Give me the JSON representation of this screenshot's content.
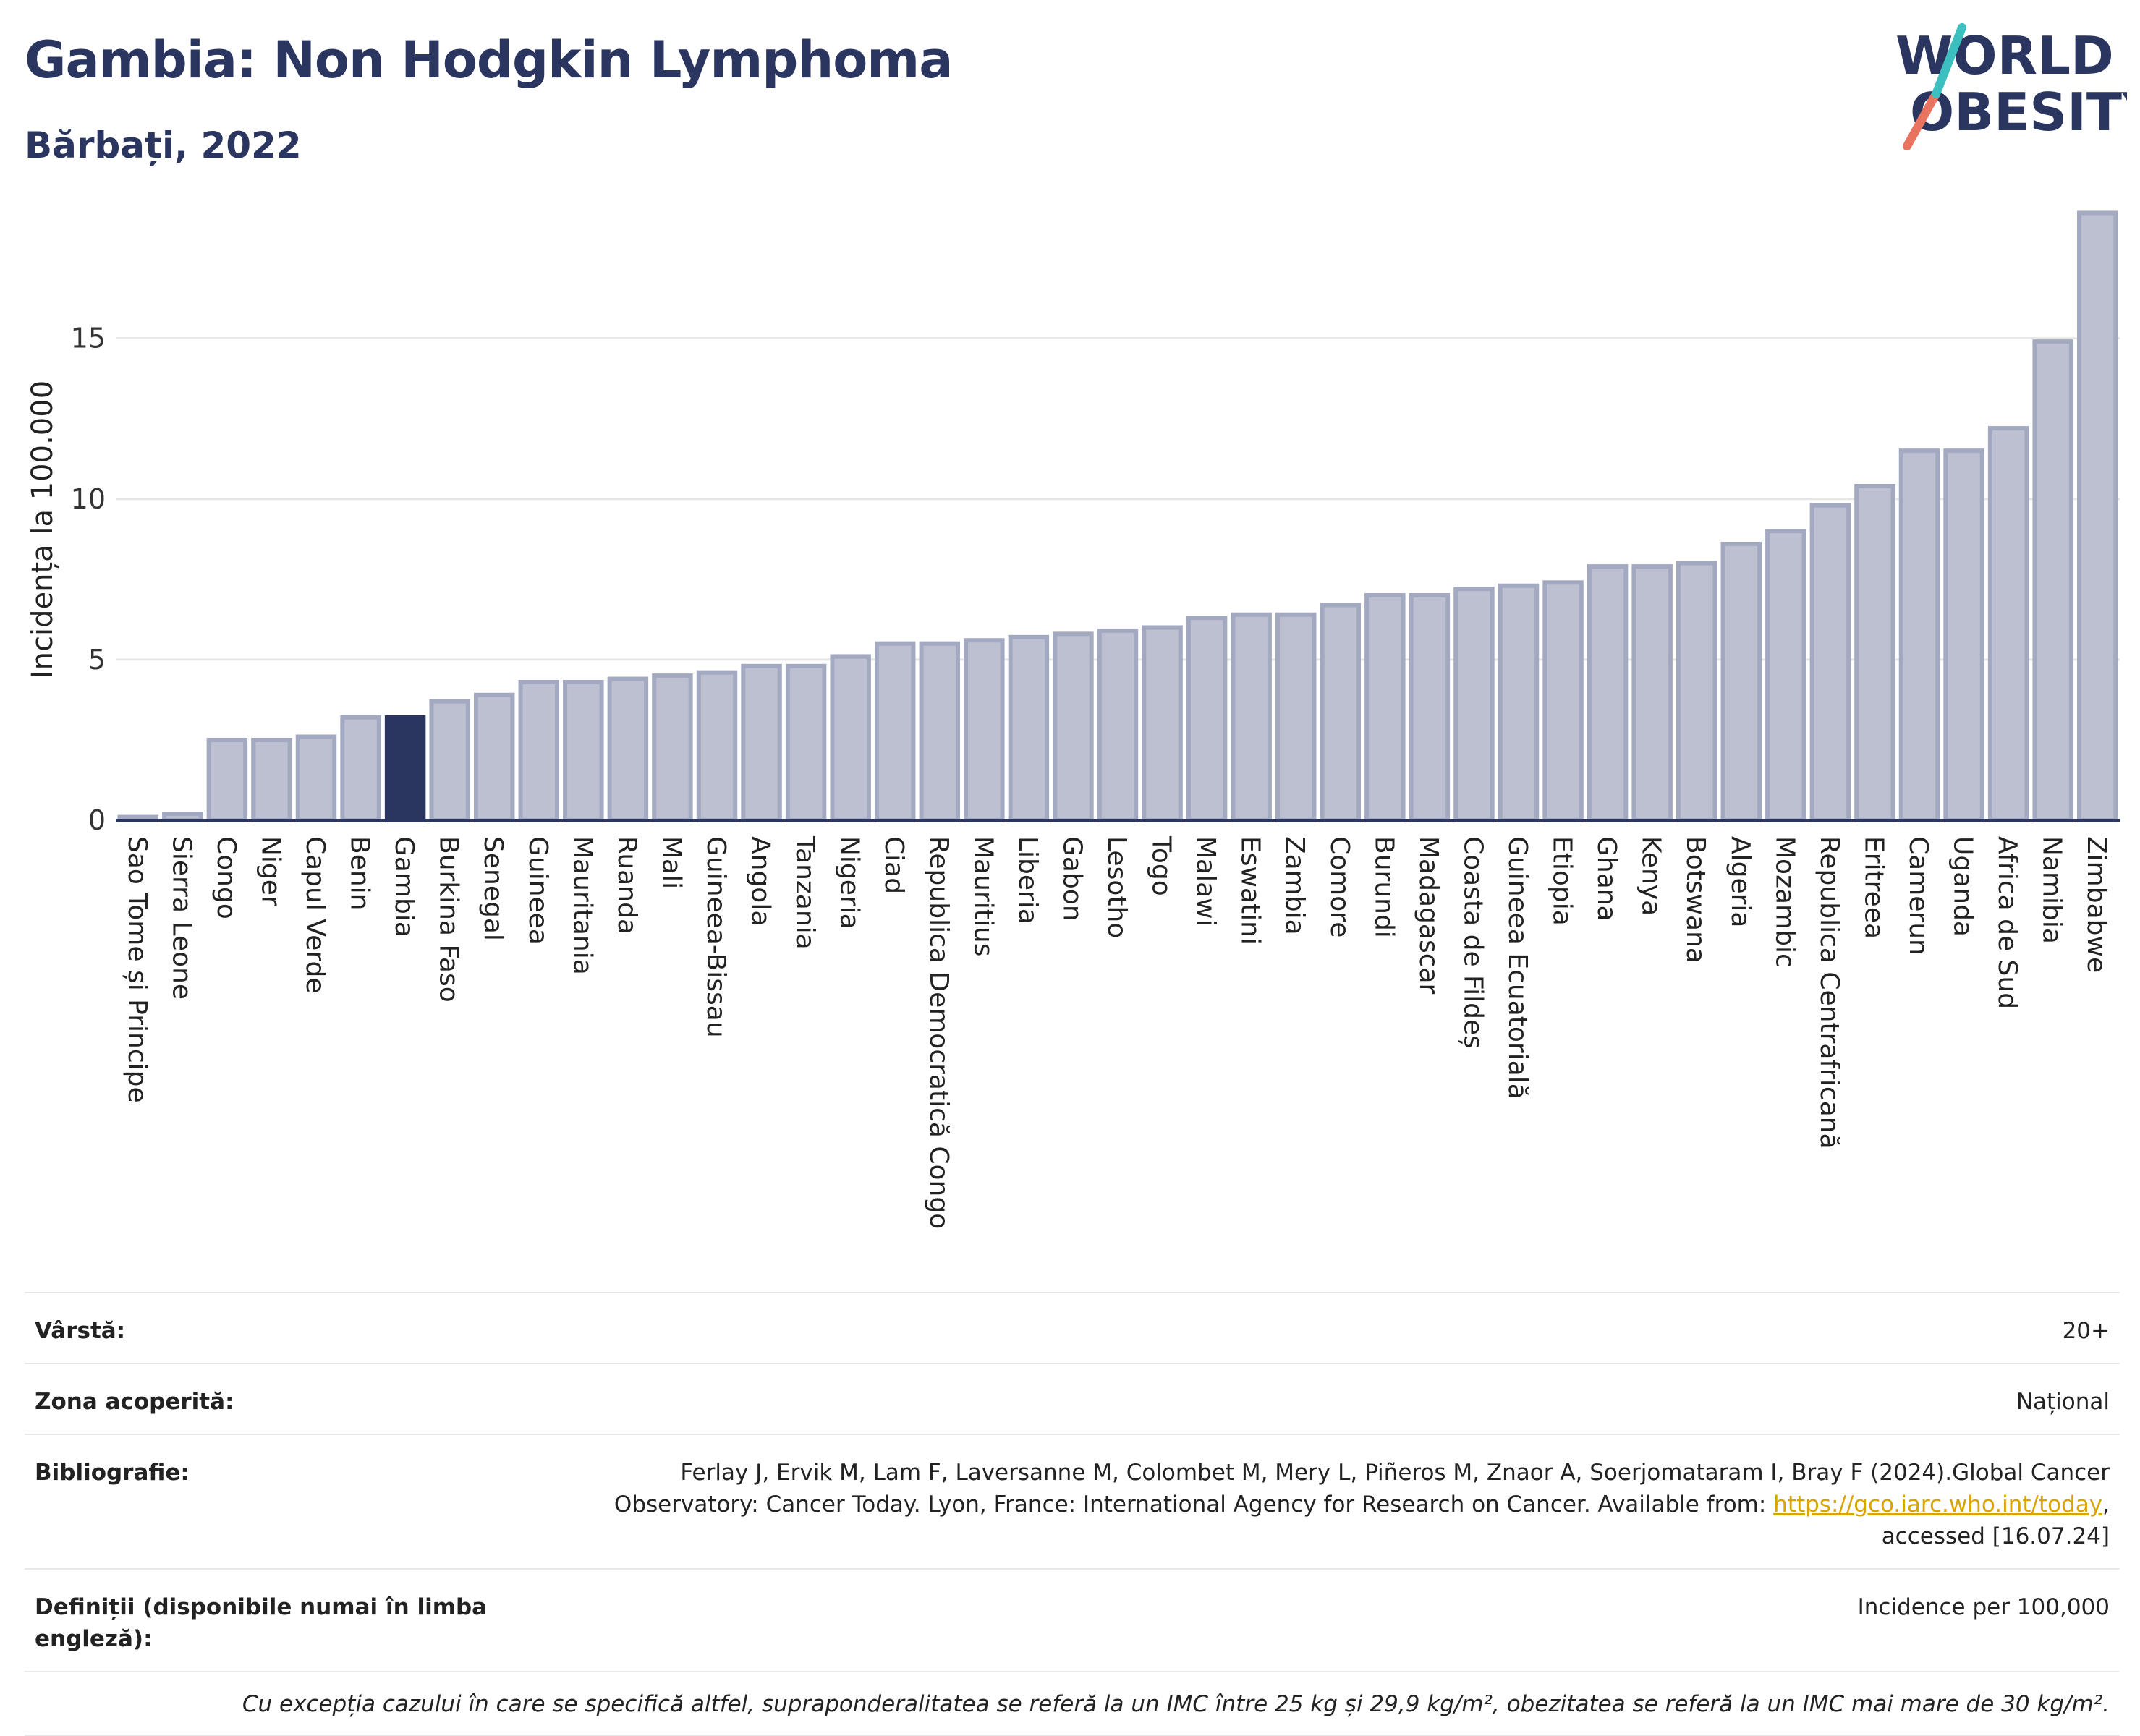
{
  "header": {
    "title": "Gambia: Non Hodgkin Lymphoma",
    "subtitle": "Bărbați, 2022",
    "logo_line1": "WORLD",
    "logo_line2": "OBESITY"
  },
  "colors": {
    "bar": "#bcc0d0",
    "bar_border": "#a3a9c1",
    "highlight": "#2a3560",
    "grid": "#e6e6e6",
    "axis": "#2a3560",
    "logo_teal": "#3bbfbf",
    "logo_coral": "#e8735f"
  },
  "chart_data": {
    "type": "bar",
    "title": "Gambia: Non Hodgkin Lymphoma",
    "subtitle": "Bărbați, 2022",
    "ylabel": "Incidența la 100.000",
    "xlabel": "",
    "ylim": [
      0,
      19
    ],
    "yticks": [
      0,
      5,
      10,
      15
    ],
    "grid": true,
    "highlight": "Gambia",
    "categories": [
      "Sao Tome și Principe",
      "Sierra Leone",
      "Congo",
      "Niger",
      "Capul Verde",
      "Benin",
      "Gambia",
      "Burkina Faso",
      "Senegal",
      "Guineea",
      "Mauritania",
      "Ruanda",
      "Mali",
      "Guineea-Bissau",
      "Angola",
      "Tanzania",
      "Nigeria",
      "Ciad",
      "Republica Democratică Congo",
      "Mauritius",
      "Liberia",
      "Gabon",
      "Lesotho",
      "Togo",
      "Malawi",
      "Eswatini",
      "Zambia",
      "Comore",
      "Burundi",
      "Madagascar",
      "Coasta de Fildeș",
      "Guineea Ecuatorială",
      "Etiopia",
      "Ghana",
      "Kenya",
      "Botswana",
      "Algeria",
      "Mozambic",
      "Republica Centrafricană",
      "Eritreea",
      "Camerun",
      "Uganda",
      "Africa de Sud",
      "Namibia",
      "Zimbabwe"
    ],
    "values": [
      0.1,
      0.2,
      2.5,
      2.5,
      2.6,
      3.2,
      3.2,
      3.7,
      3.9,
      4.3,
      4.3,
      4.4,
      4.5,
      4.6,
      4.8,
      4.8,
      5.1,
      5.5,
      5.5,
      5.6,
      5.7,
      5.8,
      5.9,
      6.0,
      6.3,
      6.4,
      6.4,
      6.7,
      7.0,
      7.0,
      7.2,
      7.3,
      7.4,
      7.9,
      7.9,
      8.0,
      8.6,
      9.0,
      9.8,
      10.4,
      11.5,
      11.5,
      12.2,
      14.9,
      18.9
    ]
  },
  "info": {
    "age_label": "Vârstă:",
    "age_value": "20+",
    "area_label": "Zona acoperită:",
    "area_value": "Național",
    "biblio_label": "Bibliografie:",
    "biblio_text": "Ferlay J, Ervik M, Lam F, Laversanne M, Colombet M, Mery L, Piñeros M, Znaor A, Soerjomataram I, Bray F (2024).Global Cancer Observatory: Cancer Today. Lyon, France: International Agency for Research on Cancer. Available from: ",
    "biblio_link": "https://gco.iarc.who.int/today",
    "biblio_tail": ", accessed [16.07.24]",
    "def_label": "Definiții (disponibile numai în limba engleză):",
    "def_value": "Incidence per 100,000",
    "note": "Cu excepția cazului în care se specifică altfel, supraponderalitatea se referă la un IMC între 25 kg și 29,9 kg/m², obezitatea se referă la un IMC mai mare de 30 kg/m²."
  }
}
